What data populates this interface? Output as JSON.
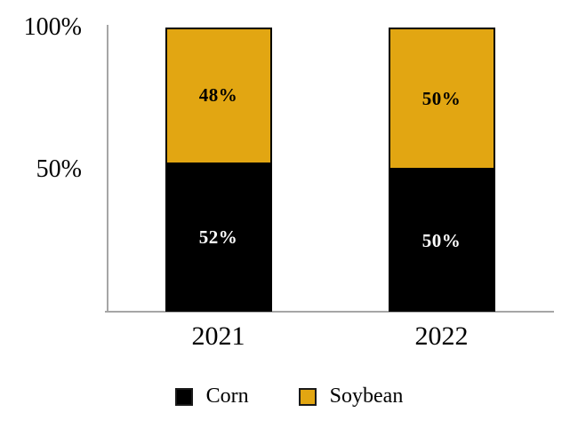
{
  "chart_data": {
    "type": "bar",
    "subtype": "stacked-100-percent",
    "categories": [
      "2021",
      "2022"
    ],
    "series": [
      {
        "name": "Corn",
        "color": "#000000",
        "label_color": "#ffffff",
        "values": [
          52,
          50
        ],
        "labels": [
          "52%",
          "50%"
        ]
      },
      {
        "name": "Soybean",
        "color": "#E2A612",
        "label_color": "#000000",
        "values": [
          48,
          50
        ],
        "labels": [
          "48%",
          "50%"
        ]
      }
    ],
    "y_ticks": [
      {
        "label": "100%",
        "value": 100
      },
      {
        "label": "50%",
        "value": 50
      }
    ],
    "ylim": [
      0,
      100
    ],
    "grid": false,
    "legend_position": "bottom",
    "title": "",
    "xlabel": "",
    "ylabel": "",
    "axis_color": "#a6a6a6",
    "bar_border_color": "#000000",
    "background_color": "#ffffff"
  }
}
